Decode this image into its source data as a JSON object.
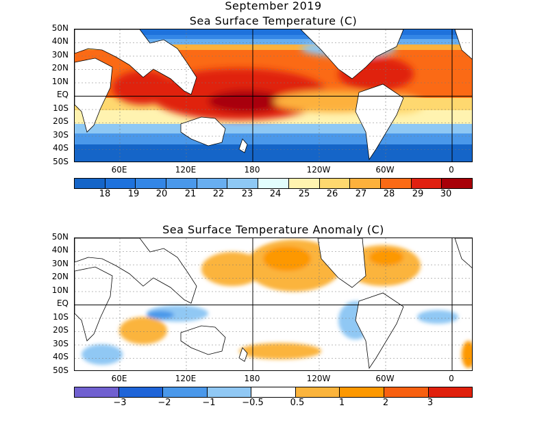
{
  "panel1": {
    "title_line1": "September 2019",
    "title_line2": "Sea Surface Temperature (C)",
    "lat_labels": [
      "50N",
      "40N",
      "30N",
      "20N",
      "10N",
      "EQ",
      "10S",
      "20S",
      "30S",
      "40S",
      "50S"
    ],
    "lon_labels": [
      "60E",
      "120E",
      "180",
      "120W",
      "60W",
      "0"
    ],
    "colorbar": {
      "colors": [
        "#1565c8",
        "#1e72dc",
        "#3386e6",
        "#4a98ea",
        "#68aef0",
        "#8ec8f4",
        "#e2fdfd",
        "#fff3b0",
        "#fed86f",
        "#fdb13c",
        "#fb6a15",
        "#e02010",
        "#a80008"
      ],
      "labels": [
        "18",
        "19",
        "20",
        "21",
        "22",
        "23",
        "24",
        "25",
        "26",
        "27",
        "28",
        "29",
        "30"
      ]
    }
  },
  "panel2": {
    "title": "Sea Surface Temperature Anomaly (C)",
    "lat_labels": [
      "50N",
      "40N",
      "30N",
      "20N",
      "10N",
      "EQ",
      "10S",
      "20S",
      "30S",
      "40S",
      "50S"
    ],
    "lon_labels": [
      "60E",
      "120E",
      "180",
      "120W",
      "60W",
      "0"
    ],
    "colorbar": {
      "colors": [
        "#7060d0",
        "#1e64d8",
        "#4a98ea",
        "#90c8f4",
        "#ffffff",
        "#fbb43c",
        "#fd9800",
        "#f86010",
        "#e0200c"
      ],
      "labels": [
        "−3",
        "−2",
        "−1",
        "−0.5",
        "0.5",
        "1",
        "2",
        "3"
      ]
    }
  }
}
